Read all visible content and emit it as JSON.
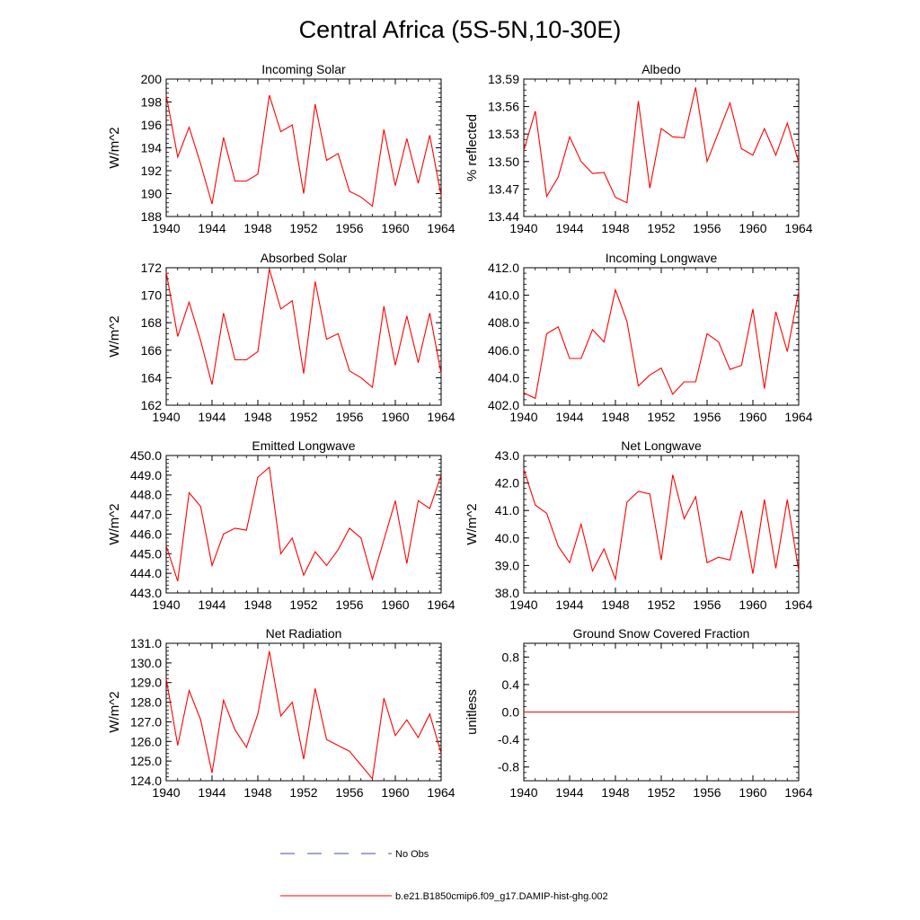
{
  "figure": {
    "title": "Central Africa (5S-5N,10-30E)"
  },
  "legend": {
    "placement": "bottom-center",
    "entries": [
      {
        "label": "No Obs",
        "color": "#3b4fa8",
        "style": "dashed"
      },
      {
        "label": "b.e21.B1850cmip6.f09_g17.DAMIP-hist-ghg.002",
        "color": "#ff0000",
        "style": "solid"
      }
    ]
  },
  "chart_data": [
    {
      "type": "line",
      "title": "Incoming Solar",
      "ylabel": "W/m^2",
      "xlabel": "",
      "xlim": [
        1940,
        1964
      ],
      "ylim": [
        188,
        200
      ],
      "xticks": [
        "1940",
        "1944",
        "1948",
        "1952",
        "1956",
        "1960",
        "1964"
      ],
      "yticks": [
        "188",
        "190",
        "192",
        "194",
        "196",
        "198",
        "200"
      ],
      "x": [
        1940,
        1941,
        1942,
        1943,
        1944,
        1945,
        1946,
        1947,
        1948,
        1949,
        1950,
        1951,
        1952,
        1953,
        1954,
        1955,
        1956,
        1957,
        1958,
        1959,
        1960,
        1961,
        1962,
        1963,
        1964
      ],
      "series": [
        {
          "color": "#ff0000",
          "values": [
            198.6,
            193.2,
            195.8,
            192.6,
            189.1,
            194.9,
            191.1,
            191.1,
            191.7,
            198.6,
            195.4,
            196.0,
            190.0,
            197.8,
            192.9,
            193.5,
            190.2,
            189.7,
            188.9,
            195.6,
            190.7,
            194.8,
            190.9,
            195.1,
            189.8
          ]
        }
      ],
      "grid": false
    },
    {
      "type": "line",
      "title": "Albedo",
      "ylabel": "% reflected",
      "xlabel": "",
      "xlim": [
        1940,
        1964
      ],
      "ylim": [
        13.44,
        13.59
      ],
      "xticks": [
        "1940",
        "1944",
        "1948",
        "1952",
        "1956",
        "1960",
        "1964"
      ],
      "yticks": [
        "13.44",
        "13.47",
        "13.50",
        "13.53",
        "13.56",
        "13.59"
      ],
      "x": [
        1940,
        1941,
        1942,
        1943,
        1944,
        1945,
        1946,
        1947,
        1948,
        1949,
        1950,
        1951,
        1952,
        1953,
        1954,
        1955,
        1956,
        1957,
        1958,
        1959,
        1960,
        1961,
        1962,
        1963,
        1964
      ],
      "series": [
        {
          "color": "#ff0000",
          "values": [
            13.512,
            13.555,
            13.462,
            13.483,
            13.527,
            13.5,
            13.487,
            13.488,
            13.461,
            13.455,
            13.566,
            13.471,
            13.536,
            13.527,
            13.526,
            13.581,
            13.5,
            13.532,
            13.564,
            13.514,
            13.507,
            13.536,
            13.507,
            13.542,
            13.499
          ]
        }
      ],
      "grid": false
    },
    {
      "type": "line",
      "title": "Absorbed Solar",
      "ylabel": "W/m^2",
      "xlabel": "",
      "xlim": [
        1940,
        1964
      ],
      "ylim": [
        162,
        172
      ],
      "xticks": [
        "1940",
        "1944",
        "1948",
        "1952",
        "1956",
        "1960",
        "1964"
      ],
      "yticks": [
        "162",
        "164",
        "166",
        "168",
        "170",
        "172"
      ],
      "x": [
        1940,
        1941,
        1942,
        1943,
        1944,
        1945,
        1946,
        1947,
        1948,
        1949,
        1950,
        1951,
        1952,
        1953,
        1954,
        1955,
        1956,
        1957,
        1958,
        1959,
        1960,
        1961,
        1962,
        1963,
        1964
      ],
      "series": [
        {
          "color": "#ff0000",
          "values": [
            171.7,
            167.0,
            169.5,
            166.7,
            163.5,
            168.7,
            165.3,
            165.3,
            165.9,
            171.9,
            169.0,
            169.6,
            164.3,
            171.0,
            166.8,
            167.2,
            164.5,
            164.0,
            163.3,
            169.2,
            164.9,
            168.5,
            165.1,
            168.7,
            164.3
          ]
        }
      ],
      "grid": false
    },
    {
      "type": "line",
      "title": "Incoming Longwave",
      "ylabel": "",
      "xlabel": "",
      "xlim": [
        1940,
        1964
      ],
      "ylim": [
        402.0,
        412.0
      ],
      "xticks": [
        "1940",
        "1944",
        "1948",
        "1952",
        "1956",
        "1960",
        "1964"
      ],
      "yticks": [
        "402.0",
        "404.0",
        "406.0",
        "408.0",
        "410.0",
        "412.0"
      ],
      "x": [
        1940,
        1941,
        1942,
        1943,
        1944,
        1945,
        1946,
        1947,
        1948,
        1949,
        1950,
        1951,
        1952,
        1953,
        1954,
        1955,
        1956,
        1957,
        1958,
        1959,
        1960,
        1961,
        1962,
        1963,
        1964
      ],
      "series": [
        {
          "color": "#ff0000",
          "values": [
            402.9,
            402.5,
            407.2,
            407.7,
            405.4,
            405.4,
            407.5,
            406.6,
            410.4,
            408.1,
            403.4,
            404.2,
            404.7,
            402.8,
            403.7,
            403.7,
            407.2,
            406.6,
            404.6,
            404.9,
            409.0,
            403.2,
            408.8,
            405.9,
            410.3
          ]
        }
      ],
      "grid": false
    },
    {
      "type": "line",
      "title": "Emitted Longwave",
      "ylabel": "W/m^2",
      "xlabel": "",
      "xlim": [
        1940,
        1964
      ],
      "ylim": [
        443.0,
        450.0
      ],
      "xticks": [
        "1940",
        "1944",
        "1948",
        "1952",
        "1956",
        "1960",
        "1964"
      ],
      "yticks": [
        "443.0",
        "444.0",
        "445.0",
        "446.0",
        "447.0",
        "448.0",
        "449.0",
        "450.0"
      ],
      "x": [
        1940,
        1941,
        1942,
        1943,
        1944,
        1945,
        1946,
        1947,
        1948,
        1949,
        1950,
        1951,
        1952,
        1953,
        1954,
        1955,
        1956,
        1957,
        1958,
        1959,
        1960,
        1961,
        1962,
        1963,
        1964
      ],
      "series": [
        {
          "color": "#ff0000",
          "values": [
            445.4,
            443.6,
            448.1,
            447.4,
            444.4,
            446.0,
            446.3,
            446.2,
            448.9,
            449.4,
            445.0,
            445.8,
            443.9,
            445.1,
            444.4,
            445.2,
            446.3,
            445.8,
            443.7,
            445.7,
            447.7,
            444.5,
            447.7,
            447.3,
            449.0
          ]
        }
      ],
      "grid": false
    },
    {
      "type": "line",
      "title": "Net Longwave",
      "ylabel": "W/m^2",
      "xlabel": "",
      "xlim": [
        1940,
        1964
      ],
      "ylim": [
        38.0,
        43.0
      ],
      "xticks": [
        "1940",
        "1944",
        "1948",
        "1952",
        "1956",
        "1960",
        "1964"
      ],
      "yticks": [
        "38.0",
        "39.0",
        "40.0",
        "41.0",
        "42.0",
        "43.0"
      ],
      "x": [
        1940,
        1941,
        1942,
        1943,
        1944,
        1945,
        1946,
        1947,
        1948,
        1949,
        1950,
        1951,
        1952,
        1953,
        1954,
        1955,
        1956,
        1957,
        1958,
        1959,
        1960,
        1961,
        1962,
        1963,
        1964
      ],
      "series": [
        {
          "color": "#ff0000",
          "values": [
            42.5,
            41.2,
            40.9,
            39.7,
            39.1,
            40.5,
            38.8,
            39.6,
            38.5,
            41.3,
            41.7,
            41.6,
            39.2,
            42.3,
            40.7,
            41.5,
            39.1,
            39.3,
            39.2,
            41.0,
            38.7,
            41.4,
            38.9,
            41.4,
            38.8
          ]
        }
      ],
      "grid": false
    },
    {
      "type": "line",
      "title": "Net Radiation",
      "ylabel": "W/m^2",
      "xlabel": "",
      "xlim": [
        1940,
        1964
      ],
      "ylim": [
        124.0,
        131.0
      ],
      "xticks": [
        "1940",
        "1944",
        "1948",
        "1952",
        "1956",
        "1960",
        "1964"
      ],
      "yticks": [
        "124.0",
        "125.0",
        "126.0",
        "127.0",
        "128.0",
        "129.0",
        "130.0",
        "131.0"
      ],
      "x": [
        1940,
        1941,
        1942,
        1943,
        1944,
        1945,
        1946,
        1947,
        1948,
        1949,
        1950,
        1951,
        1952,
        1953,
        1954,
        1955,
        1956,
        1957,
        1958,
        1959,
        1960,
        1961,
        1962,
        1963,
        1964
      ],
      "series": [
        {
          "color": "#ff0000",
          "values": [
            129.2,
            125.8,
            128.6,
            127.1,
            124.4,
            128.1,
            126.6,
            125.7,
            127.4,
            130.6,
            127.3,
            128.0,
            125.1,
            128.7,
            126.1,
            125.8,
            125.5,
            124.8,
            124.1,
            128.2,
            126.3,
            127.1,
            126.2,
            127.4,
            125.4
          ]
        }
      ],
      "grid": false
    },
    {
      "type": "line",
      "title": "Ground Snow Covered Fraction",
      "ylabel": "unitless",
      "xlabel": "",
      "xlim": [
        1940,
        1964
      ],
      "ylim": [
        -1.0,
        1.0
      ],
      "xticks": [
        "1940",
        "1944",
        "1948",
        "1952",
        "1956",
        "1960",
        "1964"
      ],
      "yticks": [
        "-0.8",
        "-0.4",
        "0.0",
        "0.4",
        "0.8"
      ],
      "x": [
        1940,
        1941,
        1942,
        1943,
        1944,
        1945,
        1946,
        1947,
        1948,
        1949,
        1950,
        1951,
        1952,
        1953,
        1954,
        1955,
        1956,
        1957,
        1958,
        1959,
        1960,
        1961,
        1962,
        1963,
        1964
      ],
      "series": [
        {
          "color": "#ff0000",
          "values": [
            0,
            0,
            0,
            0,
            0,
            0,
            0,
            0,
            0,
            0,
            0,
            0,
            0,
            0,
            0,
            0,
            0,
            0,
            0,
            0,
            0,
            0,
            0,
            0,
            0
          ]
        }
      ],
      "grid": false
    }
  ]
}
